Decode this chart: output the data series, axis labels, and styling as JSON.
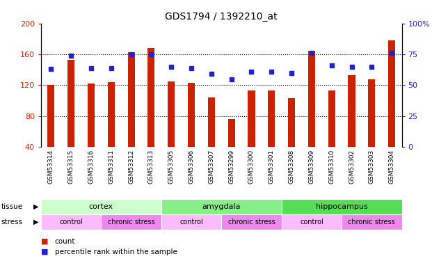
{
  "title": "GDS1794 / 1392210_at",
  "samples": [
    "GSM53314",
    "GSM53315",
    "GSM53316",
    "GSM53311",
    "GSM53312",
    "GSM53313",
    "GSM53305",
    "GSM53306",
    "GSM53307",
    "GSM53299",
    "GSM53300",
    "GSM53301",
    "GSM53308",
    "GSM53309",
    "GSM53310",
    "GSM53302",
    "GSM53303",
    "GSM53304"
  ],
  "counts": [
    120,
    153,
    122,
    124,
    163,
    168,
    125,
    123,
    104,
    76,
    113,
    113,
    103,
    165,
    113,
    133,
    128,
    178
  ],
  "percentiles": [
    63,
    74,
    64,
    64,
    75,
    75,
    65,
    64,
    59,
    55,
    61,
    61,
    60,
    76,
    66,
    65,
    65,
    76
  ],
  "bar_color": "#CC2200",
  "dot_color": "#2222CC",
  "ylim_left": [
    40,
    200
  ],
  "ylim_right": [
    0,
    100
  ],
  "yticks_left": [
    40,
    80,
    120,
    160,
    200
  ],
  "yticks_right": [
    0,
    25,
    50,
    75,
    100
  ],
  "tissue_groups": [
    {
      "label": "cortex",
      "start": 0,
      "end": 6,
      "color": "#CCFFCC"
    },
    {
      "label": "amygdala",
      "start": 6,
      "end": 12,
      "color": "#88EE88"
    },
    {
      "label": "hippocampus",
      "start": 12,
      "end": 18,
      "color": "#55DD55"
    }
  ],
  "stress_groups": [
    {
      "label": "control",
      "start": 0,
      "end": 3,
      "color": "#FFBBFF"
    },
    {
      "label": "chronic stress",
      "start": 3,
      "end": 6,
      "color": "#EE88EE"
    },
    {
      "label": "control",
      "start": 6,
      "end": 9,
      "color": "#FFBBFF"
    },
    {
      "label": "chronic stress",
      "start": 9,
      "end": 12,
      "color": "#EE88EE"
    },
    {
      "label": "control",
      "start": 12,
      "end": 15,
      "color": "#FFBBFF"
    },
    {
      "label": "chronic stress",
      "start": 15,
      "end": 18,
      "color": "#EE88EE"
    }
  ],
  "legend_count_color": "#CC2200",
  "legend_dot_color": "#2222CC",
  "background_color": "#FFFFFF",
  "tick_label_color_left": "#CC2200",
  "tick_label_color_right": "#2222CC",
  "xtick_bg_color": "#CCCCCC",
  "grid_dotted_values": [
    80,
    120,
    160
  ]
}
